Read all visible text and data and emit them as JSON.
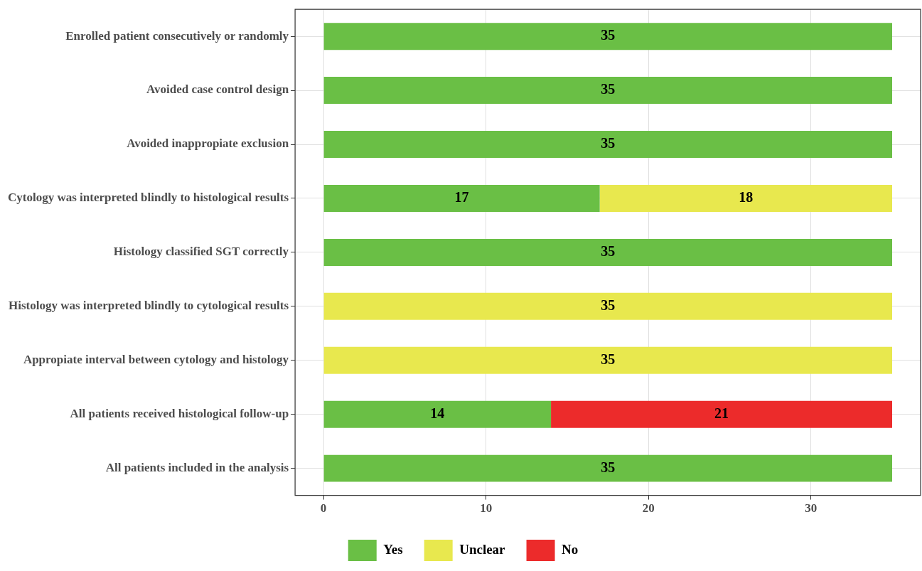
{
  "chart_data": {
    "type": "bar",
    "orientation": "horizontal",
    "stacked": true,
    "data_labels": true,
    "grid": true,
    "legend": "bottom",
    "categories": [
      "Enrolled patient consecutively or randomly",
      "Avoided case control design",
      "Avoided inappropiate exclusion",
      "Cytology was interpreted blindly to histological results",
      "Histology classified SGT correctly",
      "Histology was interpreted blindly to cytological results",
      "Appropiate interval between cytology and histology",
      "All patients received histological follow-up",
      "All patients included in the analysis"
    ],
    "series": [
      {
        "name": "Yes",
        "color": "#6abf45",
        "values": [
          35,
          35,
          35,
          17,
          35,
          null,
          null,
          14,
          35
        ]
      },
      {
        "name": "Unclear",
        "color": "#e8e84e",
        "values": [
          null,
          null,
          null,
          18,
          null,
          35,
          35,
          null,
          null
        ]
      },
      {
        "name": "No",
        "color": "#ec2b2b",
        "values": [
          null,
          null,
          null,
          null,
          null,
          null,
          null,
          21,
          null
        ]
      }
    ],
    "xlim": [
      -1.75,
      36.75
    ],
    "xticks": [
      0,
      10,
      20,
      30
    ]
  }
}
